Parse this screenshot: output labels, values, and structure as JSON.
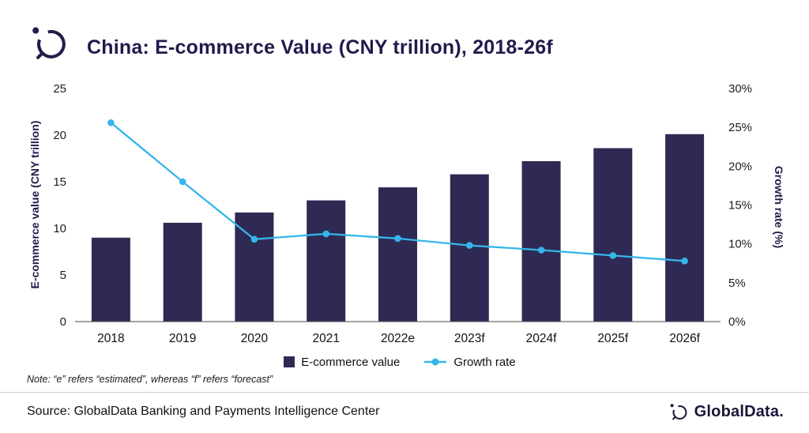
{
  "header": {
    "title": "China: E-commerce Value (CNY trillion), 2018-26f"
  },
  "chart_data": {
    "type": "bar",
    "title": "China: E-commerce Value (CNY trillion), 2018-26f",
    "categories": [
      "2018",
      "2019",
      "2020",
      "2021",
      "2022e",
      "2023f",
      "2024f",
      "2025f",
      "2026f"
    ],
    "series": [
      {
        "name": "E-commerce value",
        "type": "bar",
        "axis": "left",
        "values": [
          9.0,
          10.6,
          11.7,
          13.0,
          14.4,
          15.8,
          17.2,
          18.6,
          20.1
        ]
      },
      {
        "name": "Growth rate",
        "type": "line",
        "axis": "right",
        "values": [
          25.6,
          18.0,
          10.6,
          11.3,
          10.7,
          9.8,
          9.2,
          8.5,
          7.8
        ]
      }
    ],
    "ylabel_left": "E-commerce value (CNY trillion)",
    "ylabel_right": "Growth rate (%)",
    "ylim_left": [
      0,
      25
    ],
    "ylim_right": [
      0,
      30
    ],
    "yticks_left": [
      0,
      5,
      10,
      15,
      20,
      25
    ],
    "yticks_right": [
      "0%",
      "5%",
      "10%",
      "15%",
      "20%",
      "25%",
      "30%"
    ],
    "grid": false,
    "legend_position": "bottom",
    "bar_color": "#2f2a54",
    "line_color": "#35b6ea"
  },
  "legend": {
    "bar_label": "E-commerce value",
    "line_label": "Growth rate"
  },
  "note": "Note: “e” refers “estimated”, whereas “f” refers “forecast”",
  "footer": {
    "source": "Source: GlobalData Banking and Payments Intelligence Center",
    "brand": "GlobalData."
  }
}
